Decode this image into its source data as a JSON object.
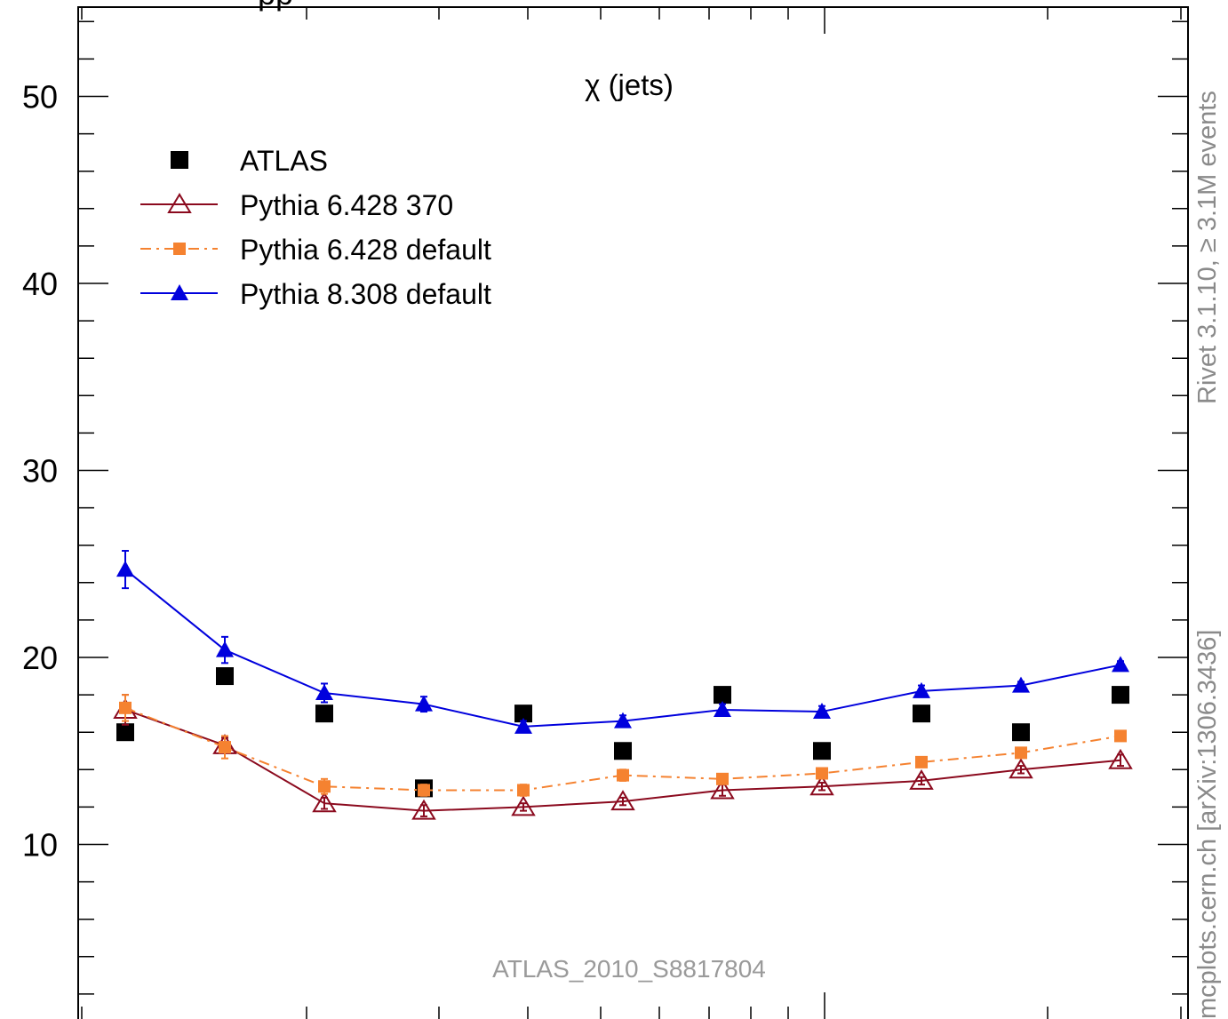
{
  "chart_data": {
    "type": "scatter",
    "title": "χ (jets)",
    "title_top_partial": "pp",
    "ylim": [
      2,
      54
    ],
    "yticks": [
      10,
      20,
      30,
      40,
      50
    ],
    "x_positions": [
      1,
      2,
      3,
      4,
      5,
      6,
      7,
      8,
      9,
      10,
      11
    ],
    "legend_placement": "top-left",
    "series": [
      {
        "name": "ATLAS",
        "color": "#000000",
        "marker": "filled-square",
        "line": "none",
        "values": [
          16.0,
          19.0,
          17.0,
          13.0,
          17.0,
          15.0,
          18.0,
          15.0,
          17.0,
          16.0,
          18.0
        ],
        "errors": [
          0,
          0,
          0,
          0,
          0,
          0,
          0,
          0,
          0,
          0,
          0
        ]
      },
      {
        "name": "Pythia 6.428 370",
        "color": "#8b0a1e",
        "marker": "open-triangle",
        "line": "solid",
        "values": [
          17.2,
          15.3,
          12.2,
          11.8,
          12.0,
          12.3,
          12.9,
          13.1,
          13.4,
          14.0,
          14.5
        ],
        "errors": [
          0.8,
          0.4,
          0.3,
          0.3,
          0.2,
          0.2,
          0.3,
          0.2,
          0.2,
          0.2,
          0.3
        ]
      },
      {
        "name": "Pythia 6.428 default",
        "color": "#f58230",
        "marker": "filled-square-small",
        "line": "dashdot",
        "values": [
          17.3,
          15.2,
          13.1,
          12.9,
          12.9,
          13.7,
          13.5,
          13.8,
          14.4,
          14.9,
          15.8
        ],
        "errors": [
          0.7,
          0.6,
          0.4,
          0.3,
          0.3,
          0.3,
          0.2,
          0.2,
          0.2,
          0.2,
          0.2
        ]
      },
      {
        "name": "Pythia 8.308 default",
        "color": "#0000dd",
        "marker": "filled-triangle",
        "line": "solid",
        "values": [
          24.7,
          20.4,
          18.1,
          17.5,
          16.3,
          16.6,
          17.2,
          17.1,
          18.2,
          18.5,
          19.6
        ],
        "errors": [
          1.0,
          0.7,
          0.5,
          0.4,
          0.3,
          0.3,
          0.3,
          0.3,
          0.3,
          0.2,
          0.2
        ]
      }
    ],
    "watermark": "ATLAS_2010_S8817804"
  },
  "side_labels": {
    "rivet": "Rivet 3.1.10, ≥ 3.1M events",
    "mcplots": "mcplots.cern.ch [arXiv:1306.3436]"
  }
}
